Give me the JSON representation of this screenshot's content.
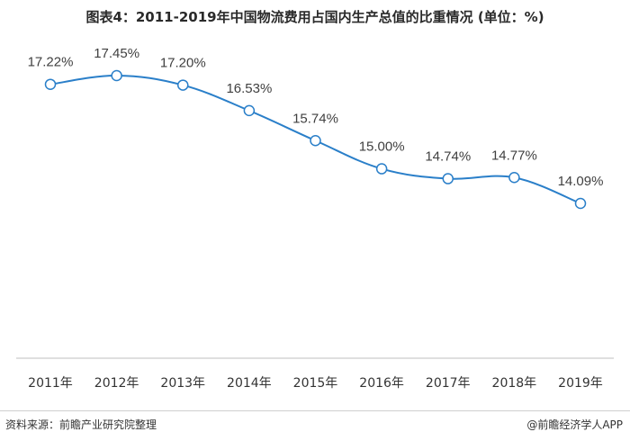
{
  "title": "图表4：2011-2019年中国物流费用占国内生产总值的比重情况 (单位：%)",
  "footer": {
    "source": "资料来源：前瞻产业研究院整理",
    "credit": "@前瞻经济学人APP"
  },
  "colors": {
    "line": "#2a7fc9",
    "marker_fill": "#ffffff",
    "axis": "#bfbfbf"
  },
  "chart_data": {
    "type": "line",
    "title": "图表4：2011-2019年中国物流费用占国内生产总值的比重情况 (单位：%)",
    "xlabel": "",
    "ylabel": "",
    "categories": [
      "2011年",
      "2012年",
      "2013年",
      "2014年",
      "2015年",
      "2016年",
      "2017年",
      "2018年",
      "2019年"
    ],
    "series": [
      {
        "values": [
          17.22,
          17.45,
          17.2,
          16.53,
          15.74,
          15.0,
          14.74,
          14.77,
          14.09
        ],
        "labels": [
          "17.22%",
          "17.45%",
          "17.20%",
          "16.53%",
          "15.74%",
          "15.00%",
          "14.74%",
          "14.77%",
          "14.09%"
        ]
      }
    ],
    "smooth": true,
    "grid": false,
    "legend": "none"
  }
}
